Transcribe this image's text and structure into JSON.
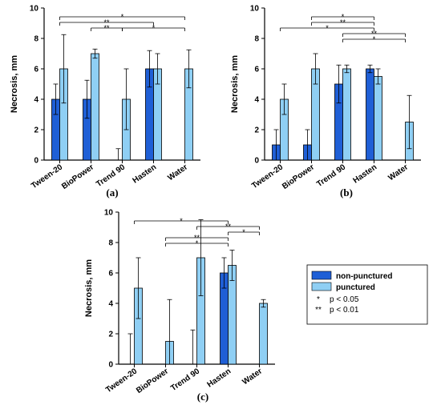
{
  "chart_data": [
    {
      "type": "bar",
      "panel_label": "(a)",
      "ylabel": "Necrosis, mm",
      "ylim": [
        0,
        10
      ],
      "yticks": [
        0,
        2,
        4,
        6,
        8,
        10
      ],
      "categories": [
        "Tween-20",
        "BioPower",
        "Trend 90",
        "Hasten",
        "Water"
      ],
      "series": [
        {
          "name": "non-punctured",
          "values": [
            4,
            4,
            0,
            6,
            null
          ],
          "errors": [
            1,
            1.25,
            0.75,
            1.2,
            null
          ]
        },
        {
          "name": "punctured",
          "values": [
            6,
            7,
            4,
            6,
            6
          ],
          "errors": [
            2.25,
            0.3,
            2,
            1,
            1.25
          ]
        }
      ],
      "significance": [
        {
          "from": 0,
          "to": 4,
          "label": "*",
          "level": 1
        },
        {
          "from": 0,
          "to": 3,
          "label": "**",
          "level": 2
        },
        {
          "from": 1,
          "to": 2,
          "label": "**",
          "level": 3
        },
        {
          "from": 2,
          "to": 4,
          "label": "*",
          "level": 3
        }
      ]
    },
    {
      "type": "bar",
      "panel_label": "(b)",
      "ylabel": "Necrosis, mm",
      "ylim": [
        0,
        10
      ],
      "yticks": [
        0,
        2,
        4,
        6,
        8,
        10
      ],
      "categories": [
        "Tween-20",
        "BioPower",
        "Trend 90",
        "Hasten",
        "Water"
      ],
      "series": [
        {
          "name": "non-punctured",
          "values": [
            1,
            1,
            5,
            6,
            null
          ],
          "errors": [
            1,
            1,
            1.25,
            0.25,
            null
          ]
        },
        {
          "name": "punctured",
          "values": [
            4,
            6,
            6,
            5.5,
            2.5
          ],
          "errors": [
            1,
            1,
            0.25,
            0.5,
            1.75
          ]
        }
      ],
      "significance": [
        {
          "from": 1,
          "to": 3,
          "label": "*",
          "level": 1
        },
        {
          "from": 1,
          "to": 3,
          "label": "**",
          "level": 2
        },
        {
          "from": 0,
          "to": 3,
          "label": "*",
          "level": 3
        },
        {
          "from": 2,
          "to": 4,
          "label": "**",
          "level": 4
        },
        {
          "from": 2,
          "to": 4,
          "label": "*",
          "level": 5
        }
      ]
    },
    {
      "type": "bar",
      "panel_label": "(c)",
      "ylabel": "Necrosis, mm",
      "ylim": [
        0,
        10
      ],
      "yticks": [
        0,
        2,
        4,
        6,
        8,
        10
      ],
      "categories": [
        "Tween-20",
        "BioPower",
        "Trend 90",
        "Hasten",
        "Water"
      ],
      "series": [
        {
          "name": "non-punctured",
          "values": [
            0,
            0,
            0,
            6,
            null
          ],
          "errors": [
            2,
            null,
            2.25,
            1,
            null
          ]
        },
        {
          "name": "punctured",
          "values": [
            5,
            1.5,
            7,
            6.5,
            4
          ],
          "errors": [
            2,
            2.75,
            2.5,
            1,
            0.25
          ]
        }
      ],
      "significance": [
        {
          "from": 0,
          "to": 3,
          "label": "*",
          "level": 1
        },
        {
          "from": 2,
          "to": 4,
          "label": "**",
          "level": 2
        },
        {
          "from": 3,
          "to": 4,
          "label": "*",
          "level": 3
        },
        {
          "from": 1,
          "to": 3,
          "label": "**",
          "level": 4
        },
        {
          "from": 1,
          "to": 3,
          "label": "*",
          "level": 5
        }
      ]
    }
  ],
  "legend": {
    "items": [
      {
        "label": "non-punctured",
        "color": "#1f5fd6"
      },
      {
        "label": "punctured",
        "color": "#8fcff4"
      }
    ],
    "notes": [
      {
        "symbol": "*",
        "text": "p < 0.05"
      },
      {
        "symbol": "**",
        "text": "p < 0.01"
      }
    ]
  },
  "colors": {
    "dark_bar": "#1f5fd6",
    "light_bar": "#8fcff4",
    "outline": "#000000"
  }
}
